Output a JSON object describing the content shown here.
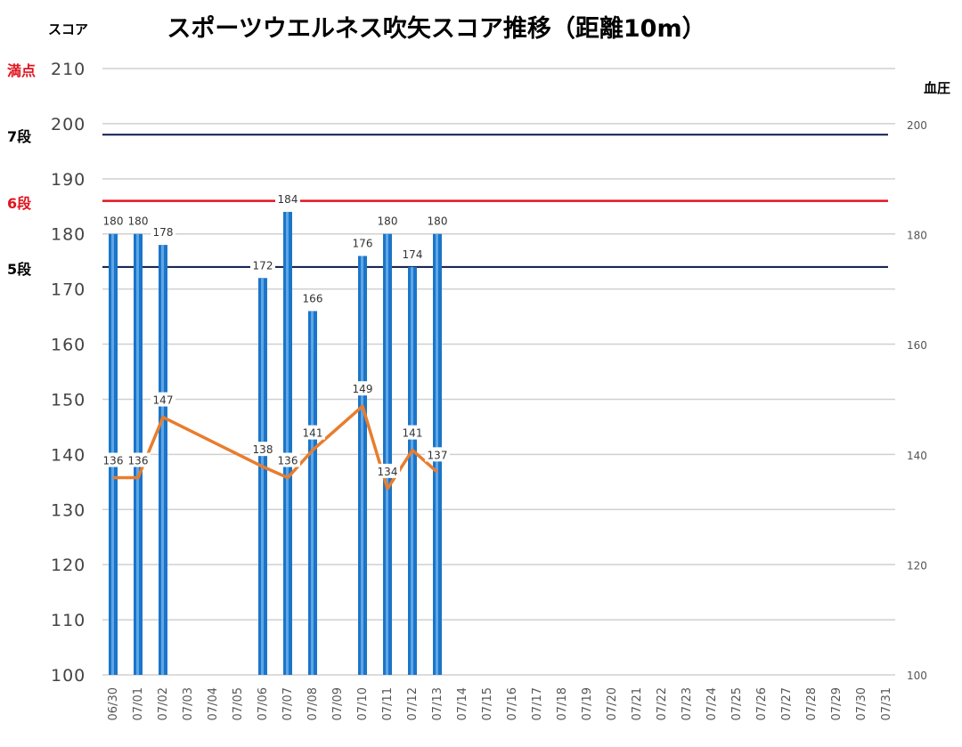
{
  "title": "スポーツウエルネス吹矢スコア推移（距離10m）",
  "left_axis_title": "スコア",
  "right_axis_title": "血圧",
  "reference_lines": [
    {
      "label": "満点",
      "value": 210,
      "color": "#e0141e",
      "line": false
    },
    {
      "label": "7段",
      "value": 198,
      "color": "#000000",
      "line": true,
      "line_color": "#0c1a4b"
    },
    {
      "label": "6段",
      "value": 186,
      "color": "#e0141e",
      "line": true,
      "line_color": "#e0141e"
    },
    {
      "label": "5段",
      "value": 174,
      "color": "#000000",
      "line": true,
      "line_color": "#0c1a4b"
    }
  ],
  "chart_data": {
    "type": "bar",
    "title": "スポーツウエルネス吹矢スコア推移（距離10m）",
    "categories": [
      "06/30",
      "07/01",
      "07/02",
      "07/03",
      "07/04",
      "07/05",
      "07/06",
      "07/07",
      "07/08",
      "07/09",
      "07/10",
      "07/11",
      "07/12",
      "07/13",
      "07/14",
      "07/15",
      "07/16",
      "07/17",
      "07/18",
      "07/19",
      "07/20",
      "07/21",
      "07/22",
      "07/23",
      "07/24",
      "07/25",
      "07/26",
      "07/27",
      "07/28",
      "07/29",
      "07/30",
      "07/31"
    ],
    "series": [
      {
        "type": "bar",
        "axis": "left",
        "color": "#1b75c9",
        "values": [
          180,
          180,
          178,
          null,
          null,
          null,
          172,
          184,
          166,
          null,
          176,
          180,
          174,
          180,
          null,
          null,
          null,
          null,
          null,
          null,
          null,
          null,
          null,
          null,
          null,
          null,
          null,
          null,
          null,
          null,
          null,
          null
        ]
      },
      {
        "type": "line",
        "axis": "right",
        "color": "#e87d2e",
        "values": [
          136,
          136,
          147,
          null,
          null,
          null,
          138,
          136,
          141,
          null,
          149,
          134,
          141,
          137,
          null,
          null,
          null,
          null,
          null,
          null,
          null,
          null,
          null,
          null,
          null,
          null,
          null,
          null,
          null,
          null,
          null,
          null
        ]
      }
    ],
    "ylim": [
      100,
      210
    ],
    "yticks": [
      100,
      110,
      120,
      130,
      140,
      150,
      160,
      170,
      180,
      190,
      200,
      210
    ],
    "y2lim": [
      100,
      210
    ],
    "y2ticks": [
      100,
      120,
      140,
      160,
      180,
      200
    ],
    "ylabel": "スコア",
    "y2label": "血圧",
    "grid": true
  }
}
